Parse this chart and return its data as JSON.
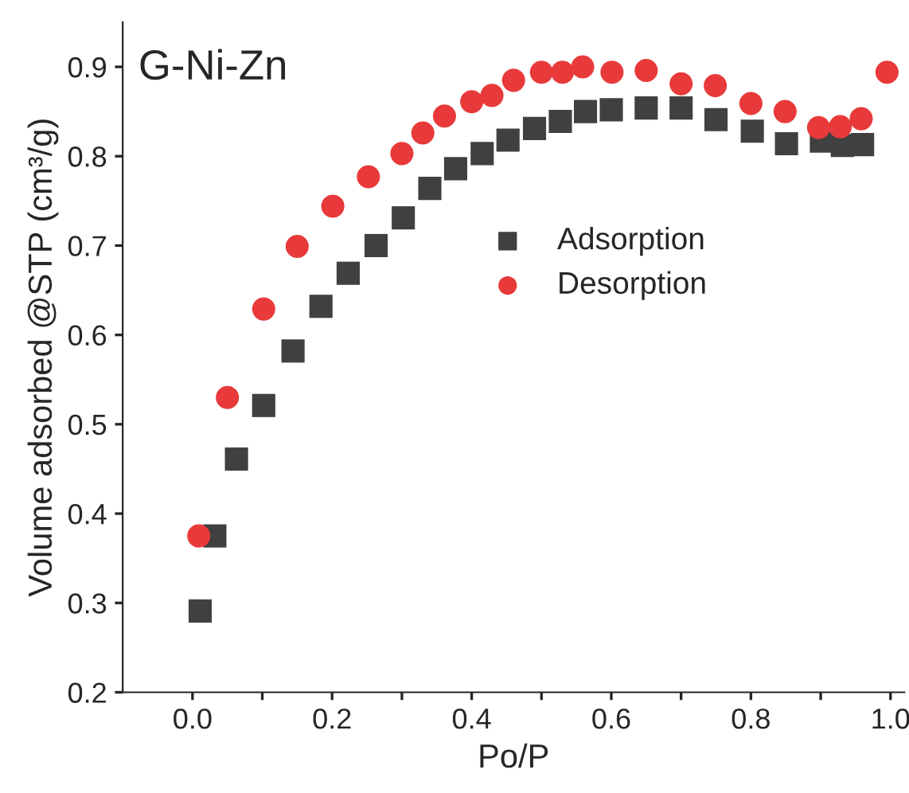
{
  "chart_data": {
    "type": "scatter",
    "title": "G-Ni-Zn",
    "xlabel": "Po/P",
    "ylabel": "Volume adsorbed @STP (cm³/g)",
    "xlim": [
      -0.1,
      1.02
    ],
    "ylim": [
      0.2,
      0.95
    ],
    "xticks": [
      {
        "value": 0.0,
        "label": "0.0"
      },
      {
        "value": 0.1,
        "label": null
      },
      {
        "value": 0.2,
        "label": "0.2"
      },
      {
        "value": 0.3,
        "label": null
      },
      {
        "value": 0.4,
        "label": "0.4"
      },
      {
        "value": 0.5,
        "label": null
      },
      {
        "value": 0.6,
        "label": "0.6"
      },
      {
        "value": 0.7,
        "label": null
      },
      {
        "value": 0.8,
        "label": "0.8"
      },
      {
        "value": 0.9,
        "label": null
      },
      {
        "value": 1.0,
        "label": "1.0"
      }
    ],
    "yticks": [
      0.2,
      0.3,
      0.4,
      0.5,
      0.6,
      0.7,
      0.8,
      0.9
    ],
    "legend": "center",
    "grid": false,
    "series": [
      {
        "name": "Adsorption",
        "color": "#404040",
        "marker": "square",
        "x": [
          0.011,
          0.032,
          0.063,
          0.102,
          0.144,
          0.184,
          0.223,
          0.263,
          0.302,
          0.34,
          0.377,
          0.415,
          0.452,
          0.49,
          0.527,
          0.563,
          0.6,
          0.65,
          0.7,
          0.75,
          0.802,
          0.851,
          0.901,
          0.931,
          0.96
        ],
        "values": [
          0.291,
          0.375,
          0.461,
          0.521,
          0.582,
          0.632,
          0.669,
          0.7,
          0.731,
          0.764,
          0.786,
          0.803,
          0.818,
          0.831,
          0.839,
          0.85,
          0.852,
          0.854,
          0.854,
          0.841,
          0.828,
          0.814,
          0.817,
          0.812,
          0.813
        ]
      },
      {
        "name": "Desorption",
        "color": "#e83a3a",
        "marker": "circle",
        "x": [
          0.009,
          0.05,
          0.102,
          0.15,
          0.201,
          0.252,
          0.3,
          0.33,
          0.361,
          0.4,
          0.429,
          0.46,
          0.5,
          0.53,
          0.559,
          0.601,
          0.65,
          0.7,
          0.749,
          0.8,
          0.849,
          0.897,
          0.928,
          0.958,
          0.995
        ],
        "values": [
          0.375,
          0.53,
          0.629,
          0.699,
          0.744,
          0.777,
          0.803,
          0.826,
          0.845,
          0.861,
          0.868,
          0.885,
          0.894,
          0.894,
          0.9,
          0.894,
          0.896,
          0.881,
          0.879,
          0.859,
          0.85,
          0.832,
          0.833,
          0.842,
          0.894
        ]
      }
    ]
  }
}
